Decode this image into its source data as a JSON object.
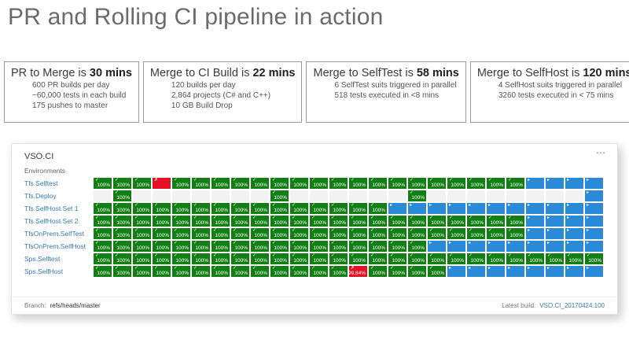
{
  "page_title": "PR and Rolling CI pipeline in action",
  "stat_boxes": [
    {
      "title_prefix": "PR to Merge is ",
      "title_bold": "30 mins",
      "lines": [
        "600 PR builds per day",
        "~60,000 tests in each build",
        "175 pushes to master"
      ]
    },
    {
      "title_prefix": "Merge to CI Build is ",
      "title_bold": "22 mins",
      "lines": [
        "120 builds per day",
        "2,864 projects (C# and C++)",
        "10 GB Build Drop"
      ]
    },
    {
      "title_prefix": "Merge to SelfTest is ",
      "title_bold": "58 mins",
      "lines": [
        "6 SelfTest suits triggered in parallel",
        "518 tests executed in <8 mins"
      ]
    },
    {
      "title_prefix": "Merge to SelfHost is ",
      "title_bold": "120 mins",
      "lines": [
        "4 SelfHost suits triggered in parallel",
        "3260 tests executed in < 75 mins"
      ]
    }
  ],
  "dashboard": {
    "title": "VSO.CI",
    "menu_icon": "⋯",
    "environments_label": "Environments",
    "columns": 26,
    "cell_legend": {
      "s": {
        "state": "succeeded",
        "icon": "✓",
        "icon_name": "check-icon",
        "label": "100%"
      },
      "x": {
        "state": "failed",
        "icon": "✗",
        "icon_name": "cross-icon",
        "label": ""
      },
      "X": {
        "state": "failed",
        "icon": "✗",
        "icon_name": "cross-icon",
        "label": "99.84%"
      },
      "p": {
        "state": "in-progress",
        "icon": "▸",
        "icon_name": "play-icon",
        "label": ""
      },
      "e": {
        "state": "empty",
        "icon": "",
        "icon_name": "",
        "label": ""
      }
    },
    "rows": [
      {
        "label": "Tfs.Selftest",
        "cells": "sssxsssssssssssssssssspppp"
      },
      {
        "label": "Tfs.Deploy",
        "cells": "eseeeeeeeseeeeeeseeeeeeeep"
      },
      {
        "label": "Tfs.SelfHost Set 1",
        "cells": "sssssssssssssssppppppppppp"
      },
      {
        "label": "Tfs.SelfHost Set 2",
        "cells": "sssssssssssssssssssssspppp"
      },
      {
        "label": "TfsOnPrem.SelfTest",
        "cells": "sssssssssssssssssssssspppp"
      },
      {
        "label": "TfsOnPrem.SelfHost",
        "cells": "sssssssssssssssssppppppppp"
      },
      {
        "label": "Sps.Selftest",
        "cells": "ssssssssssssssssssssssssss"
      },
      {
        "label": "Sps.SelfHost",
        "cells": "sssssssssssssXsssspppppppp"
      }
    ],
    "footer": {
      "branch_label": "Branch:",
      "branch_value": "refs/heads/master",
      "latest_build_label": "Latest build:",
      "latest_build_value": "VSO.CI_20170424.100"
    }
  },
  "colors": {
    "green": "#137e13",
    "red": "#e31123",
    "blue": "#2a8ad6",
    "link_blue": "#3579b8",
    "title_gray": "#6b6b6b"
  }
}
